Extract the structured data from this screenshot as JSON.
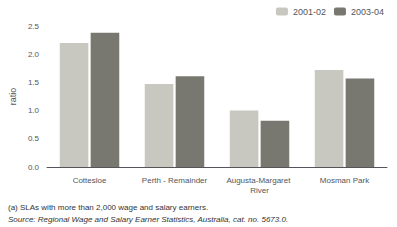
{
  "chart_data": {
    "type": "bar",
    "categories": [
      "Cottesloe",
      "Perth - Remainder",
      "Augusta-Margaret River",
      "Mosman Park"
    ],
    "series": [
      {
        "name": "2001-02",
        "color": "#c8c8c0",
        "values": [
          2.2,
          1.47,
          1.0,
          1.72
        ]
      },
      {
        "name": "2003-04",
        "color": "#787870",
        "values": [
          2.38,
          1.61,
          0.82,
          1.57
        ]
      }
    ],
    "ylabel": "ratio",
    "ylim": [
      0,
      2.5
    ],
    "yticks": [
      {
        "value": 0,
        "label": "0.0"
      },
      0.5,
      {
        "value": 1.0,
        "label": "1.0"
      },
      1.5,
      {
        "value": 2.0,
        "label": "2.0"
      },
      2.5
    ],
    "grid": false,
    "legend": "upper right",
    "annotations": [
      "(a) SLAs with more than 2,000 wage and salary earners.",
      "Source: Regional Wage and Salary Earner Statistics, Australia, cat. no. 5673.0."
    ]
  }
}
